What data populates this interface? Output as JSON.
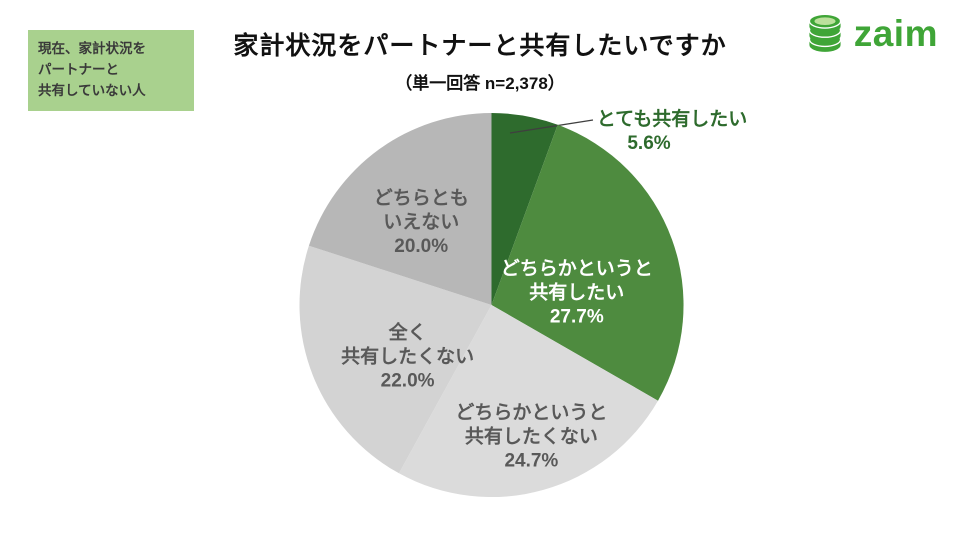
{
  "header": {
    "badge_lines": [
      "現在、家計状況を",
      "パートナーと",
      "共有していない人"
    ],
    "title": "家計状況をパートナーと共有したいですか",
    "subtitle": "（単一回答 n=2,378）",
    "logo_text": "zaim"
  },
  "chart_data": {
    "type": "pie",
    "title": "家計状況をパートナーと共有したいですか",
    "subtitle": "（単一回答 n=2,378）",
    "sample_size": "n=2,378",
    "start_angle_deg": 0,
    "direction": "clockwise",
    "unit": "%",
    "slices": [
      {
        "label": "とても共有したい",
        "value": 5.6,
        "color": "#2e6b2d",
        "label_color": "#2e6b2d",
        "callout_lines": [
          "とても共有したい",
          "5.6%"
        ]
      },
      {
        "label": "どちらかというと共有したい",
        "value": 27.7,
        "color": "#4e8b3f",
        "label_color": "#ffffff",
        "label_lines": [
          "どちらかというと",
          "共有したい",
          "27.7%"
        ]
      },
      {
        "label": "どちらかというと共有したくない",
        "value": 24.7,
        "color": "#dbdbdb",
        "label_color": "#595959",
        "label_lines": [
          "どちらかというと",
          "共有したくない",
          "24.7%"
        ]
      },
      {
        "label": "全く共有したくない",
        "value": 22.0,
        "color": "#d3d3d3",
        "label_color": "#595959",
        "label_lines": [
          "全く",
          "共有したくない",
          "22.0%"
        ]
      },
      {
        "label": "どちらともいえない",
        "value": 20.0,
        "color": "#b7b7b7",
        "label_color": "#595959",
        "label_lines": [
          "どちらとも",
          "いえない",
          "20.0%"
        ]
      }
    ]
  }
}
